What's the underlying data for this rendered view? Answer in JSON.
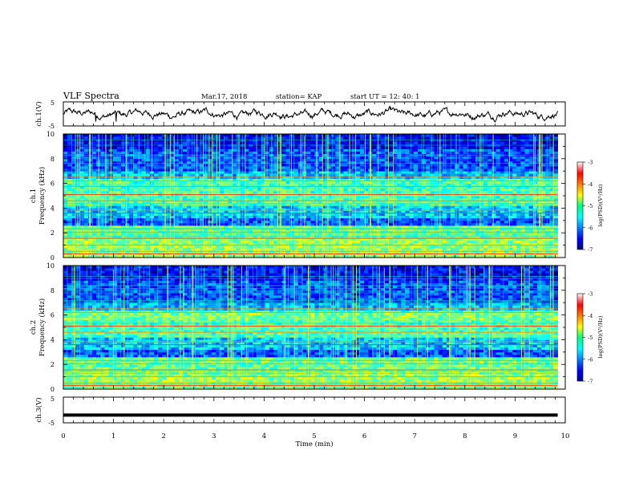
{
  "header": {
    "title": "VLF Spectra",
    "date": "Mar.17, 2018",
    "station": "station= KAP",
    "start": "start  UT =   12: 40: 1"
  },
  "colors": {
    "line": "#000000",
    "background": "#ffffff"
  },
  "chart_data": [
    {
      "type": "line",
      "panel": "ch1-waveform",
      "ylabel": "ch.1(V)",
      "yticks": [
        "5",
        "-5"
      ],
      "ylim": [
        -5,
        5
      ],
      "xlim": [
        0,
        10
      ],
      "series": [
        {
          "values_note": "noisy waveform, mean ~0 V, amplitude ~±2 V, spikes to ~-3 V near t=0.65"
        }
      ]
    },
    {
      "type": "heatmap",
      "panel": "ch1-spectrogram",
      "ylabel": "ch.1\nFrequency (kHz)",
      "ylabel_lines": [
        "ch.1",
        "Frequency (kHz)"
      ],
      "yticks": [
        "0",
        "2",
        "4",
        "6",
        "8",
        "10"
      ],
      "ylim": [
        0,
        10
      ],
      "xlim": [
        0,
        9.85
      ],
      "colorbar": {
        "label": "log(PSD)(V²/Hz)",
        "ticks": [
          "-3",
          "-4",
          "-5",
          "-6",
          "-7"
        ],
        "range": [
          -7,
          -3
        ]
      }
    },
    {
      "type": "heatmap",
      "panel": "ch2-spectrogram",
      "ylabel_lines": [
        "ch.2",
        "Frequency (kHz)"
      ],
      "yticks": [
        "0",
        "2",
        "4",
        "6",
        "8",
        "10"
      ],
      "ylim": [
        0,
        10
      ],
      "xlim": [
        0,
        9.85
      ],
      "colorbar": {
        "label": "log(PSD)(V²/Hz)",
        "ticks": [
          "-3",
          "-4",
          "-5",
          "-6",
          "-7"
        ],
        "range": [
          -7,
          -3
        ]
      }
    },
    {
      "type": "line",
      "panel": "ch3-waveform",
      "ylabel": "ch.3(V)",
      "yticks": [
        "5",
        "-5"
      ],
      "ylim": [
        -5,
        5
      ],
      "xlim": [
        0,
        10
      ],
      "series": [
        {
          "constant": -2
        }
      ]
    }
  ],
  "xaxis": {
    "label": "Time  (min)",
    "ticks": [
      "0",
      "1",
      "2",
      "3",
      "4",
      "5",
      "6",
      "7",
      "8",
      "9",
      "10"
    ],
    "range": [
      0,
      10
    ]
  }
}
